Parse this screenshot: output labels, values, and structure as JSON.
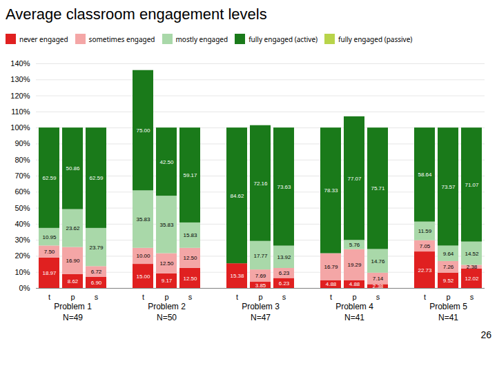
{
  "chart_data": {
    "type": "bar",
    "title": "Average classroom engagement levels",
    "page_number": "26",
    "stacked": true,
    "data_labels": true,
    "grid": true,
    "legend": "top",
    "categories": [
      "t",
      "p",
      "s",
      "t",
      "p",
      "s",
      "t",
      "p",
      "s",
      "t",
      "p",
      "s",
      "t",
      "p",
      "s"
    ],
    "groups": [
      {
        "label": "Problem 1",
        "n": "N=49"
      },
      {
        "label": "Problem 2",
        "n": "N=50"
      },
      {
        "label": "Problem 3",
        "n": "N=47"
      },
      {
        "label": "Problem 4",
        "n": "N=41"
      },
      {
        "label": "Problem 5",
        "n": "N=41"
      }
    ],
    "series": [
      {
        "name": "never engaged",
        "color": "#e02020",
        "values": [
          18.97,
          8.62,
          6.9,
          15.0,
          9.17,
          12.5,
          15.38,
          3.85,
          6.23,
          4.88,
          4.88,
          2.38,
          22.73,
          9.52,
          12.02
        ],
        "value_labels": [
          "18.97",
          "8.62",
          "6.90",
          "15.00",
          "9.17",
          "12.50",
          "15.38",
          "3.85",
          "6.23",
          "4.88",
          "4.88",
          "2.38",
          "22.73",
          "9.52",
          "12.02"
        ]
      },
      {
        "name": "sometimes engaged",
        "color": "#f4a6a6",
        "values": [
          7.5,
          16.9,
          6.72,
          10.0,
          12.5,
          12.5,
          0.0,
          7.69,
          6.23,
          16.79,
          19.29,
          7.14,
          7.05,
          7.26,
          2.38
        ],
        "value_labels": [
          "7.50",
          "16.90",
          "6.72",
          "10.00",
          "12.50",
          "12.50",
          null,
          "7.69",
          "6.23",
          "16.79",
          "19.29",
          "7.14",
          "7.05",
          "7.26",
          "2.38"
        ]
      },
      {
        "name": "mostly engaged",
        "color": "#a9d8a9",
        "values": [
          10.95,
          23.62,
          23.79,
          35.83,
          35.83,
          15.83,
          0.0,
          17.77,
          13.92,
          0.0,
          5.76,
          14.76,
          11.59,
          9.64,
          14.52
        ],
        "value_labels": [
          "10.95",
          "23.62",
          "23.79",
          "35.83",
          "35.83",
          "15.83",
          null,
          "17.77",
          "13.92",
          null,
          "5.76",
          "14.76",
          "11.59",
          "9.64",
          "14.52"
        ]
      },
      {
        "name": "fully engaged (active)",
        "color": "#1a7a1a",
        "values": [
          62.59,
          50.86,
          62.59,
          75.0,
          42.5,
          59.17,
          84.62,
          72.16,
          73.63,
          78.33,
          77.07,
          75.71,
          58.64,
          73.57,
          71.07
        ],
        "value_labels": [
          "62.59",
          "50.86",
          "62.59",
          "75.00",
          "42.50",
          "59.17",
          "84.62",
          "72.16",
          "73.63",
          "78.33",
          "77.07",
          "75.71",
          "58.64",
          "73.57",
          "71.07"
        ]
      },
      {
        "name": "fully engaged (passive)",
        "color": "#b8d44a",
        "values": [
          0.0,
          0.0,
          0.0,
          0.0,
          0.0,
          0.0,
          0.0,
          0.0,
          0.0,
          0.0,
          0.0,
          0.0,
          0.0,
          0.0,
          0.0
        ],
        "value_labels": [
          null,
          null,
          null,
          null,
          null,
          null,
          null,
          null,
          null,
          null,
          null,
          null,
          null,
          null,
          null
        ]
      }
    ],
    "ylim": [
      0,
      140
    ],
    "yticks": [
      {
        "value": 0,
        "label": "0%"
      },
      {
        "value": 10,
        "label": "10%"
      },
      {
        "value": 20,
        "label": "20%"
      },
      {
        "value": 30,
        "label": "30%"
      },
      {
        "value": 40,
        "label": "40%"
      },
      {
        "value": 50,
        "label": "50%"
      },
      {
        "value": 60,
        "label": "60%"
      },
      {
        "value": 70,
        "label": "70%"
      },
      {
        "value": 80,
        "label": "80%"
      },
      {
        "value": 90,
        "label": "90%"
      },
      {
        "value": 100,
        "label": "100%"
      },
      {
        "value": 110,
        "label": "110%"
      },
      {
        "value": 120,
        "label": "120%"
      },
      {
        "value": 130,
        "label": "130%"
      },
      {
        "value": 140,
        "label": "140%"
      }
    ]
  }
}
